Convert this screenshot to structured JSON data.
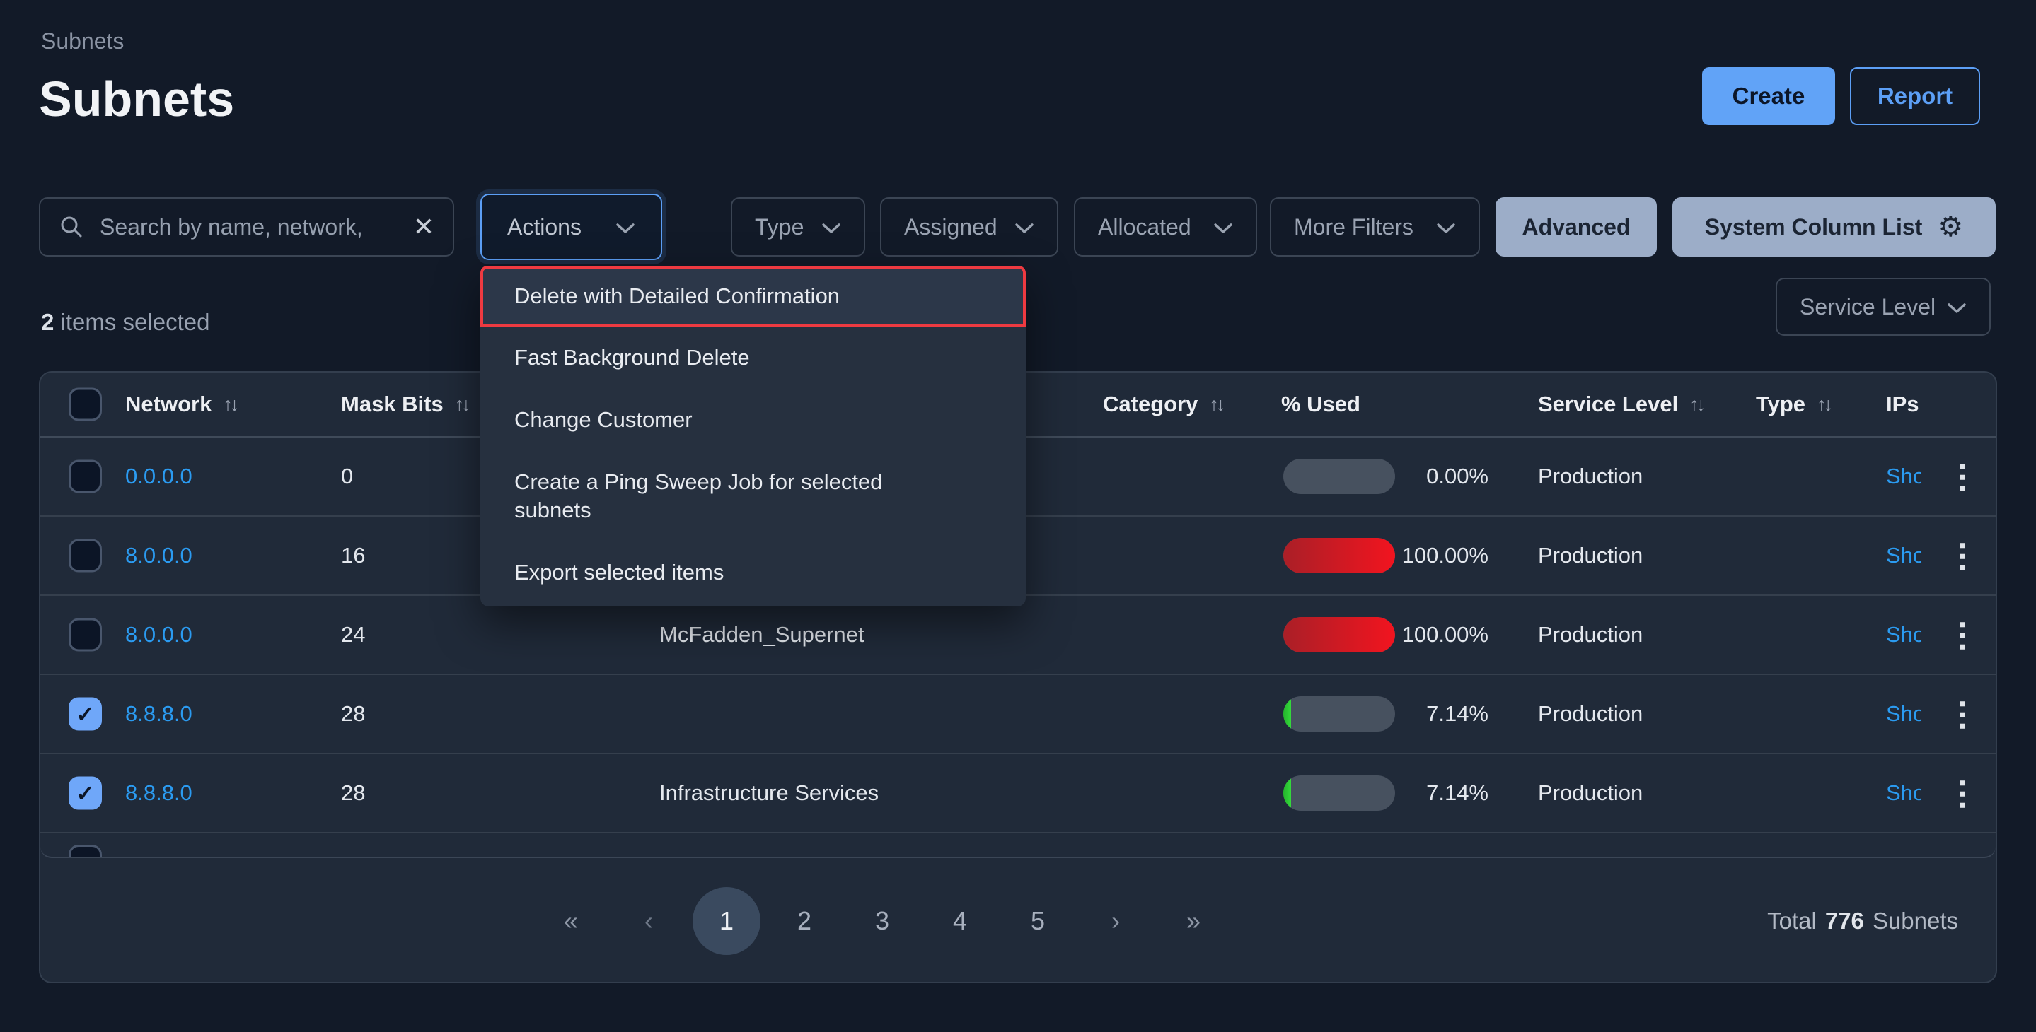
{
  "app": {
    "breadcrumb": "Subnets",
    "title": "Subnets"
  },
  "header_buttons": {
    "create": "Create",
    "report": "Report"
  },
  "toolbar": {
    "search_placeholder": "Search by name, network,",
    "actions_label": "Actions",
    "filters": {
      "type": "Type",
      "assigned": "Assigned",
      "allocated": "Allocated",
      "more_filters": "More Filters"
    },
    "advanced": "Advanced",
    "system_column_list": "System Column List"
  },
  "selection": {
    "count": "2",
    "label": " items selected"
  },
  "service_level_filter": {
    "label": "Service Level"
  },
  "actions_menu": {
    "items": [
      {
        "label": "Delete with Detailed Confirmation",
        "highlighted": true
      },
      {
        "label": "Fast Background Delete",
        "highlighted": false
      },
      {
        "label": "Change Customer",
        "highlighted": false
      },
      {
        "label": "Create a Ping Sweep Job for selected subnets",
        "highlighted": false
      },
      {
        "label": "Export selected items",
        "highlighted": false
      }
    ]
  },
  "table": {
    "columns": {
      "network": "Network",
      "mask_bits": "Mask Bits",
      "category": "Category",
      "used": "% Used",
      "service_level": "Service Level",
      "type": "Type",
      "ips": "IPs"
    },
    "rows": [
      {
        "network": "0.0.0.0",
        "mask_bits": "0",
        "name": "",
        "category": "",
        "used_pct": "0.00%",
        "used_value": 0,
        "bar_color": "",
        "service_level": "Production",
        "type": "",
        "ips_link": "Show",
        "checked": false
      },
      {
        "network": "8.0.0.0",
        "mask_bits": "16",
        "name": "",
        "category": "",
        "used_pct": "100.00%",
        "used_value": 100,
        "bar_color": "red",
        "service_level": "Production",
        "type": "",
        "ips_link": "Show",
        "checked": false
      },
      {
        "network": "8.0.0.0",
        "mask_bits": "24",
        "name": "McFadden_Supernet",
        "category": "",
        "used_pct": "100.00%",
        "used_value": 100,
        "bar_color": "red",
        "service_level": "Production",
        "type": "",
        "ips_link": "Show",
        "checked": false
      },
      {
        "network": "8.8.8.0",
        "mask_bits": "28",
        "name": "",
        "category": "",
        "used_pct": "7.14%",
        "used_value": 7.14,
        "bar_color": "green",
        "service_level": "Production",
        "type": "",
        "ips_link": "Show",
        "checked": true
      },
      {
        "network": "8.8.8.0",
        "mask_bits": "28",
        "name": "Infrastructure Services",
        "category": "",
        "used_pct": "7.14%",
        "used_value": 7.14,
        "bar_color": "green",
        "service_level": "Production",
        "type": "",
        "ips_link": "Show",
        "checked": true
      }
    ]
  },
  "pagination": {
    "first": "«",
    "prev": "‹",
    "pages": [
      "1",
      "2",
      "3",
      "4",
      "5"
    ],
    "active_page": "1",
    "next": "›",
    "last": "»"
  },
  "footer_total": {
    "prefix": "Total",
    "count": "776",
    "suffix": "Subnets"
  },
  "icons": {
    "search": "magnifier",
    "clear": "✕",
    "gear": "⚙",
    "sort": "↑↓",
    "kebab": "⋮",
    "check": "✓"
  }
}
